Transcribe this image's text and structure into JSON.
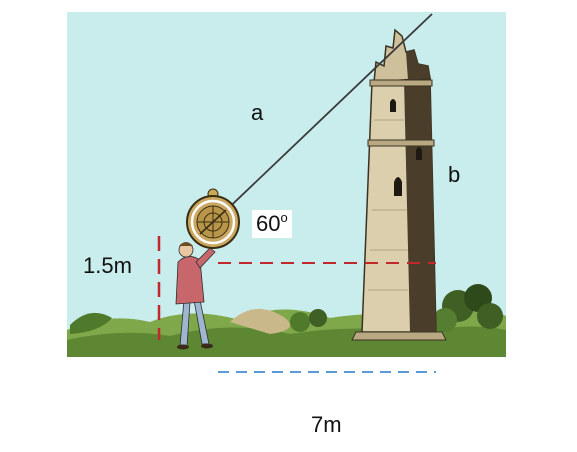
{
  "labels": {
    "hypotenuse": "a",
    "tower_height": "b",
    "angle_value": "60",
    "angle_unit": "o",
    "observer_height": "1.5m",
    "base_distance": "7m"
  },
  "colors": {
    "sky": "#c9ecec",
    "ground": "#6f9a3e",
    "tower": "#d8ccae",
    "tower_shadow": "#3a3222",
    "sight_line": "#3a3a3a",
    "horizontal_dashed": "#c0282b",
    "observer_height_dashed": "#c0282b",
    "base_dashed": "#5b9bd5"
  },
  "icons": {
    "observer": "person-with-astrolabe-icon",
    "tower": "stone-tower-icon"
  }
}
